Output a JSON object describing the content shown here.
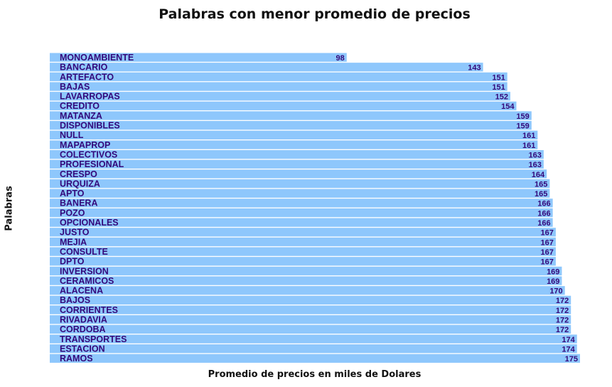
{
  "chart_data": {
    "type": "bar",
    "orientation": "horizontal",
    "title": "Palabras con menor promedio de precios",
    "xlabel": "Promedio de precios en miles de Dolares",
    "ylabel": "Palabras",
    "xlim": [
      0,
      175
    ],
    "grid": false,
    "categories": [
      "MONOAMBIENTE",
      "BANCARIO",
      "ARTEFACTO",
      "BAJAS",
      "LAVARROPAS",
      "CREDITO",
      "MATANZA",
      "DISPONIBLES",
      "NULL",
      "MAPAPROP",
      "COLECTIVOS",
      "PROFESIONAL",
      "CRESPO",
      "URQUIZA",
      "APTO",
      "BANERA",
      "POZO",
      "OPCIONALES",
      "JUSTO",
      "MEJIA",
      "CONSULTE",
      "DPTO",
      "INVERSION",
      "CERAMICOS",
      "ALACENA",
      "BAJOS",
      "CORRIENTES",
      "RIVADAVIA",
      "CORDOBA",
      "TRANSPORTES",
      "ESTACION",
      "RAMOS"
    ],
    "values": [
      98,
      143,
      151,
      151,
      152,
      154,
      159,
      159,
      161,
      161,
      163,
      163,
      164,
      165,
      165,
      166,
      166,
      166,
      167,
      167,
      167,
      167,
      169,
      169,
      170,
      172,
      172,
      172,
      172,
      174,
      174,
      175
    ],
    "bar_color": "#8ec7fc",
    "label_color": "#33087a"
  }
}
